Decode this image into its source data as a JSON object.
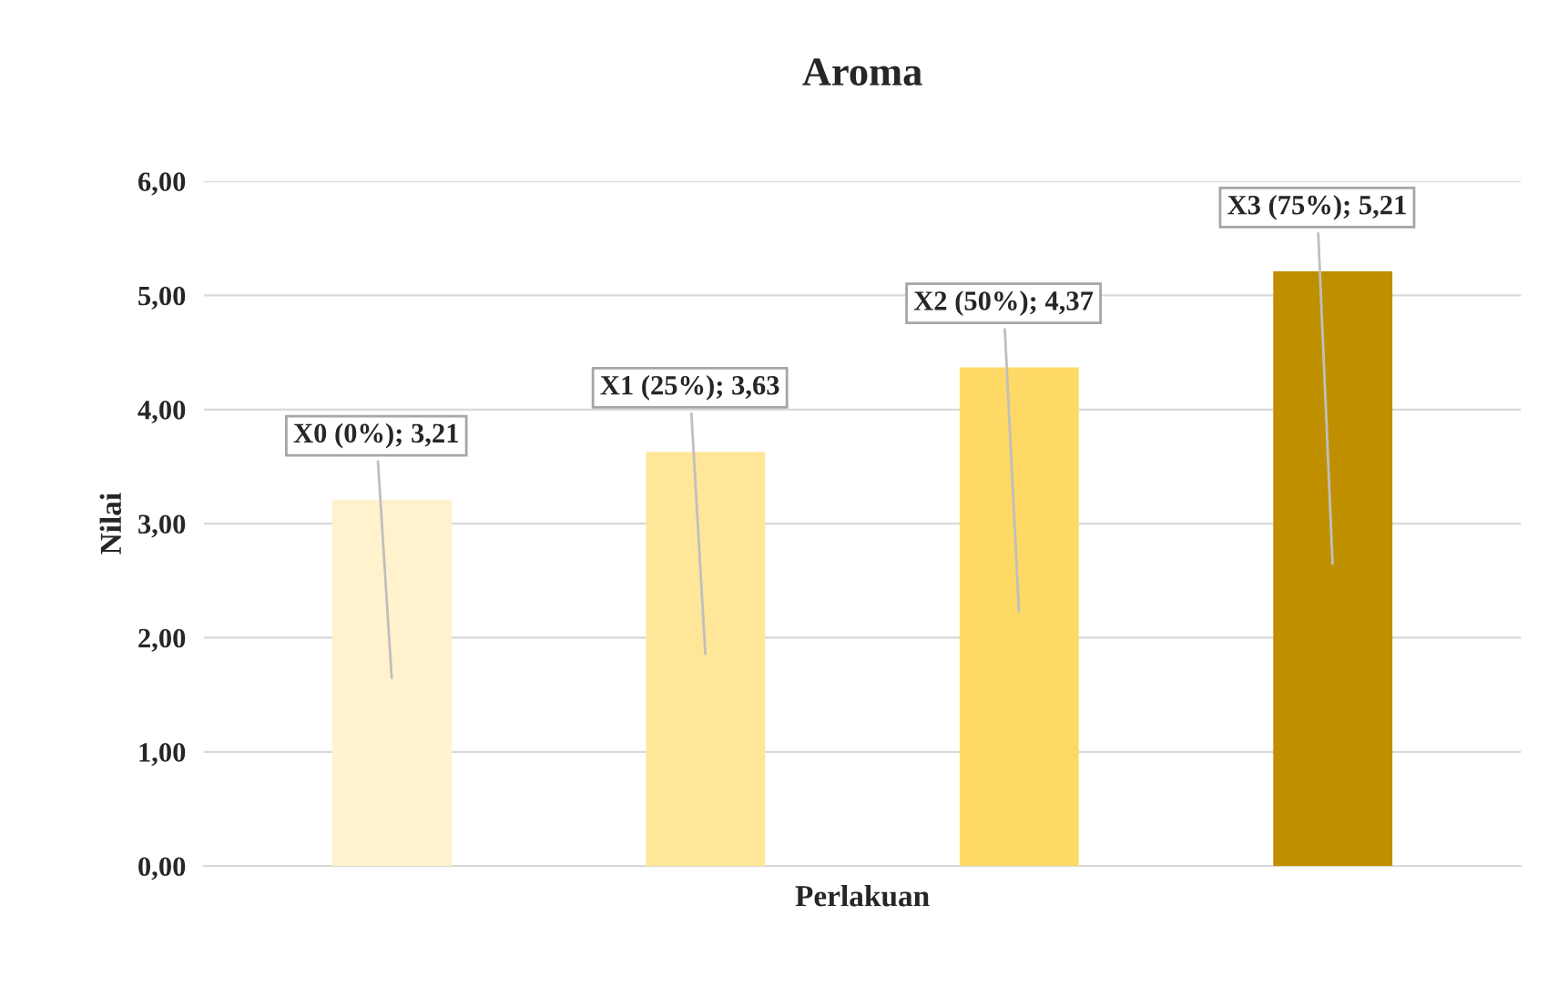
{
  "chart_data": {
    "type": "bar",
    "title": "Aroma",
    "xlabel": "Perlakuan",
    "ylabel": "Nilai",
    "categories": [
      null,
      null,
      null,
      null
    ],
    "values": [
      3.21,
      3.63,
      4.37,
      5.21
    ],
    "colors": [
      "#fff2cc",
      "#ffe699",
      "#ffd966",
      "#bf8f00"
    ],
    "value_labels": [
      "X0 (0%); 3,21",
      "X1 (25%); 3,63",
      "X2 (50%); 4,37",
      "X3 (75%); 5,21"
    ],
    "ylim": [
      0,
      6
    ],
    "yticks": [
      {
        "value": 0,
        "label": "0,00"
      },
      {
        "value": 1,
        "label": "1,00"
      },
      {
        "value": 2,
        "label": "2,00"
      },
      {
        "value": 3,
        "label": "3,00"
      },
      {
        "value": 4,
        "label": "4,00"
      },
      {
        "value": 5,
        "label": "5,00"
      },
      {
        "value": 6,
        "label": "6,00"
      }
    ],
    "grid": "y",
    "legend": false
  }
}
